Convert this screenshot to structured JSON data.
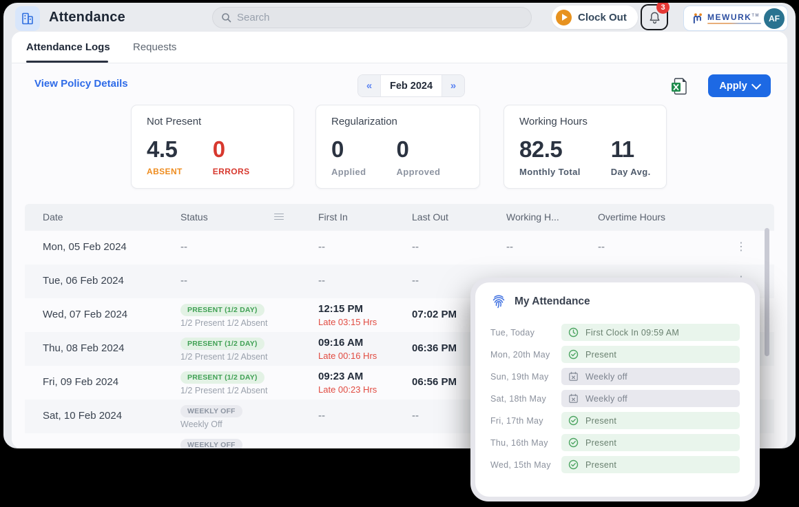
{
  "header": {
    "title": "Attendance",
    "search_placeholder": "Search",
    "clock_out_label": "Clock Out",
    "notification_count": "3",
    "brand_name": "MEWURK",
    "brand_tm": "TM",
    "avatar_initials": "AF"
  },
  "tabs": [
    {
      "label": "Attendance Logs",
      "active": true
    },
    {
      "label": "Requests",
      "active": false
    }
  ],
  "toolbar": {
    "policy_link": "View Policy Details",
    "month_label": "Feb 2024",
    "prev_icon": "«",
    "next_icon": "»",
    "apply_label": "Apply"
  },
  "summary_cards": [
    {
      "title": "Not Present",
      "metrics": [
        {
          "value": "4.5",
          "label": "ABSENT"
        },
        {
          "value": "0",
          "label": "ERRORS"
        }
      ]
    },
    {
      "title": "Regularization",
      "metrics": [
        {
          "value": "0",
          "label": "Applied"
        },
        {
          "value": "0",
          "label": "Approved"
        }
      ]
    },
    {
      "title": "Working Hours",
      "metrics": [
        {
          "value": "82.5",
          "label": "Monthly Total"
        },
        {
          "value": "11",
          "label": "Day Avg."
        }
      ]
    }
  ],
  "table": {
    "columns": [
      "Date",
      "Status",
      "First In",
      "Last Out",
      "Working H...",
      "Overtime Hours"
    ],
    "rows": [
      {
        "date": "Mon, 05 Feb 2024",
        "status_dash": "--",
        "first_in": "--",
        "last_out": "--",
        "working": "--",
        "overtime": "--"
      },
      {
        "date": "Tue, 06 Feb 2024",
        "status_dash": "--",
        "first_in": "--",
        "last_out": "--",
        "working": "--",
        "overtime": "--"
      },
      {
        "date": "Wed, 07 Feb 2024",
        "badge": "PRESENT (1/2 DAY)",
        "badge_type": "green",
        "sub": "1/2 Present 1/2 Absent",
        "first_in": "12:15 PM",
        "late": "Late 03:15 Hrs",
        "last_out": "07:02 PM",
        "working": "",
        "overtime": ""
      },
      {
        "date": "Thu, 08 Feb 2024",
        "badge": "PRESENT (1/2 DAY)",
        "badge_type": "green",
        "sub": "1/2 Present 1/2 Absent",
        "first_in": "09:16 AM",
        "late": "Late 00:16 Hrs",
        "last_out": "06:36 PM",
        "working": "",
        "overtime": ""
      },
      {
        "date": "Fri, 09 Feb 2024",
        "badge": "PRESENT (1/2 DAY)",
        "badge_type": "green",
        "sub": "1/2 Present 1/2 Absent",
        "first_in": "09:23 AM",
        "late": "Late 00:23 Hrs",
        "last_out": "06:56 PM",
        "working": "",
        "overtime": ""
      },
      {
        "date": "Sat, 10 Feb 2024",
        "badge": "WEEKLY OFF",
        "badge_type": "gray",
        "sub": "Weekly Off",
        "first_in": "--",
        "last_out": "--",
        "working": "",
        "overtime": ""
      },
      {
        "date": "",
        "badge": "WEEKLY OFF",
        "badge_type": "gray"
      }
    ]
  },
  "widget": {
    "title": "My Attendance",
    "entries": [
      {
        "day": "Tue, Today",
        "icon": "clock",
        "type": "green",
        "label": "First Clock In 09:59 AM"
      },
      {
        "day": "Mon, 20th May",
        "icon": "check",
        "type": "green",
        "label": "Present"
      },
      {
        "day": "Sun, 19th May",
        "icon": "calendar-x",
        "type": "gray",
        "label": "Weekly off"
      },
      {
        "day": "Sat, 18th May",
        "icon": "calendar-x",
        "type": "gray",
        "label": "Weekly off"
      },
      {
        "day": "Fri, 17th May",
        "icon": "check",
        "type": "green",
        "label": "Present"
      },
      {
        "day": "Thu, 16th May",
        "icon": "check",
        "type": "green",
        "label": "Present"
      },
      {
        "day": "Wed, 15th May",
        "icon": "check",
        "type": "green",
        "label": "Present"
      }
    ]
  },
  "colors": {
    "accent_blue": "#1d69e4",
    "link_blue": "#2e6be8",
    "badge_green_bg": "#e3f2e5",
    "badge_green_text": "#41a155",
    "badge_gray_bg": "#e9eaef",
    "late_red": "#e14b41",
    "absent_orange": "#ee8c1e",
    "error_red": "#d7382e",
    "notification_red": "#e53935",
    "clockout_orange": "#e7921f",
    "avatar_teal": "#2a7390"
  }
}
